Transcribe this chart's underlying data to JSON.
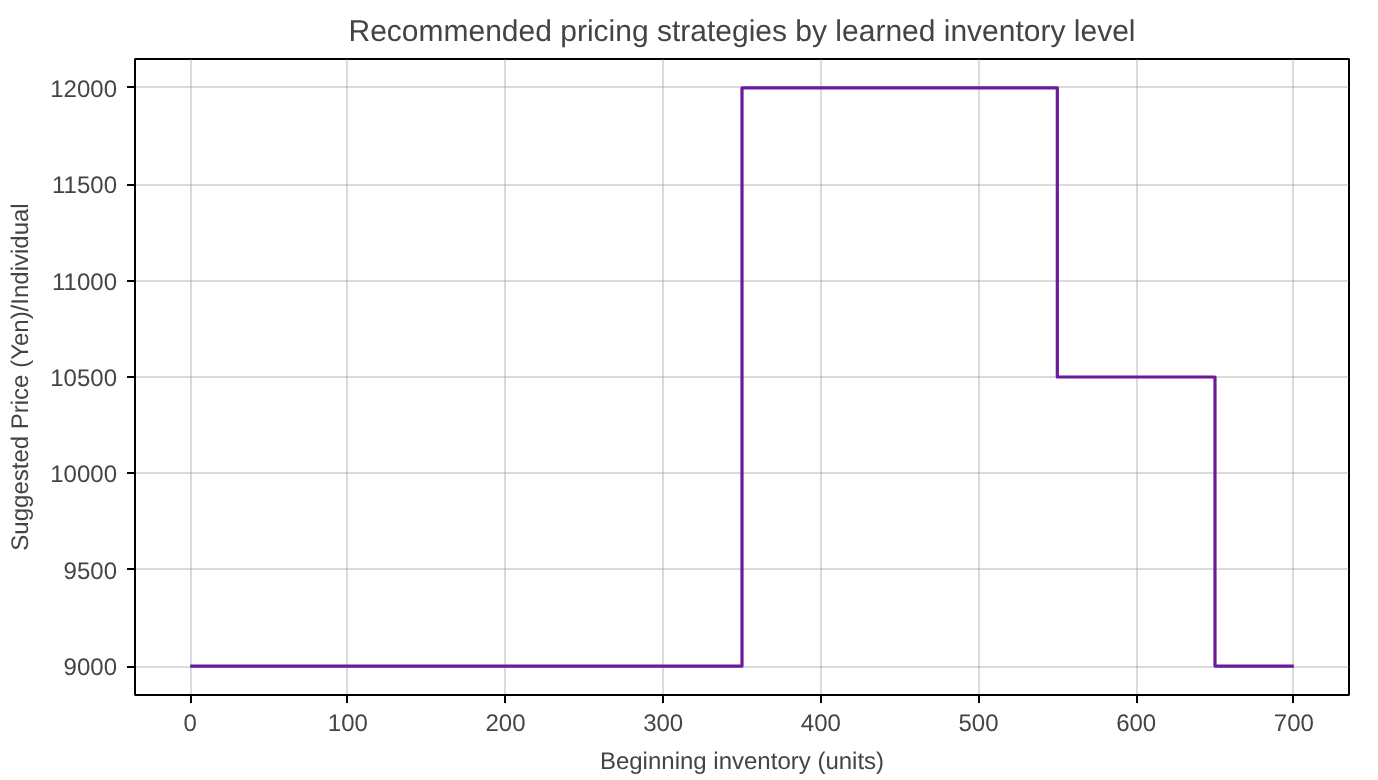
{
  "chart_data": {
    "type": "step",
    "title": "Recommended pricing strategies by learned inventory level",
    "xlabel": "Beginning inventory (units)",
    "ylabel": "Suggested Price (Yen)/Individual",
    "x": [
      0,
      350,
      550,
      650,
      700
    ],
    "series": [
      {
        "color": "#6a1b9a",
        "values": [
          9000,
          12000,
          10500,
          9000,
          9000
        ]
      }
    ],
    "xlim": [
      -35,
      735
    ],
    "ylim": [
      8850,
      12150
    ],
    "xticks": [
      0,
      100,
      200,
      300,
      400,
      500,
      600,
      700
    ],
    "yticks": [
      9000,
      9500,
      10000,
      10500,
      11000,
      11500,
      12000
    ],
    "grid": true,
    "line_style": "solid"
  }
}
